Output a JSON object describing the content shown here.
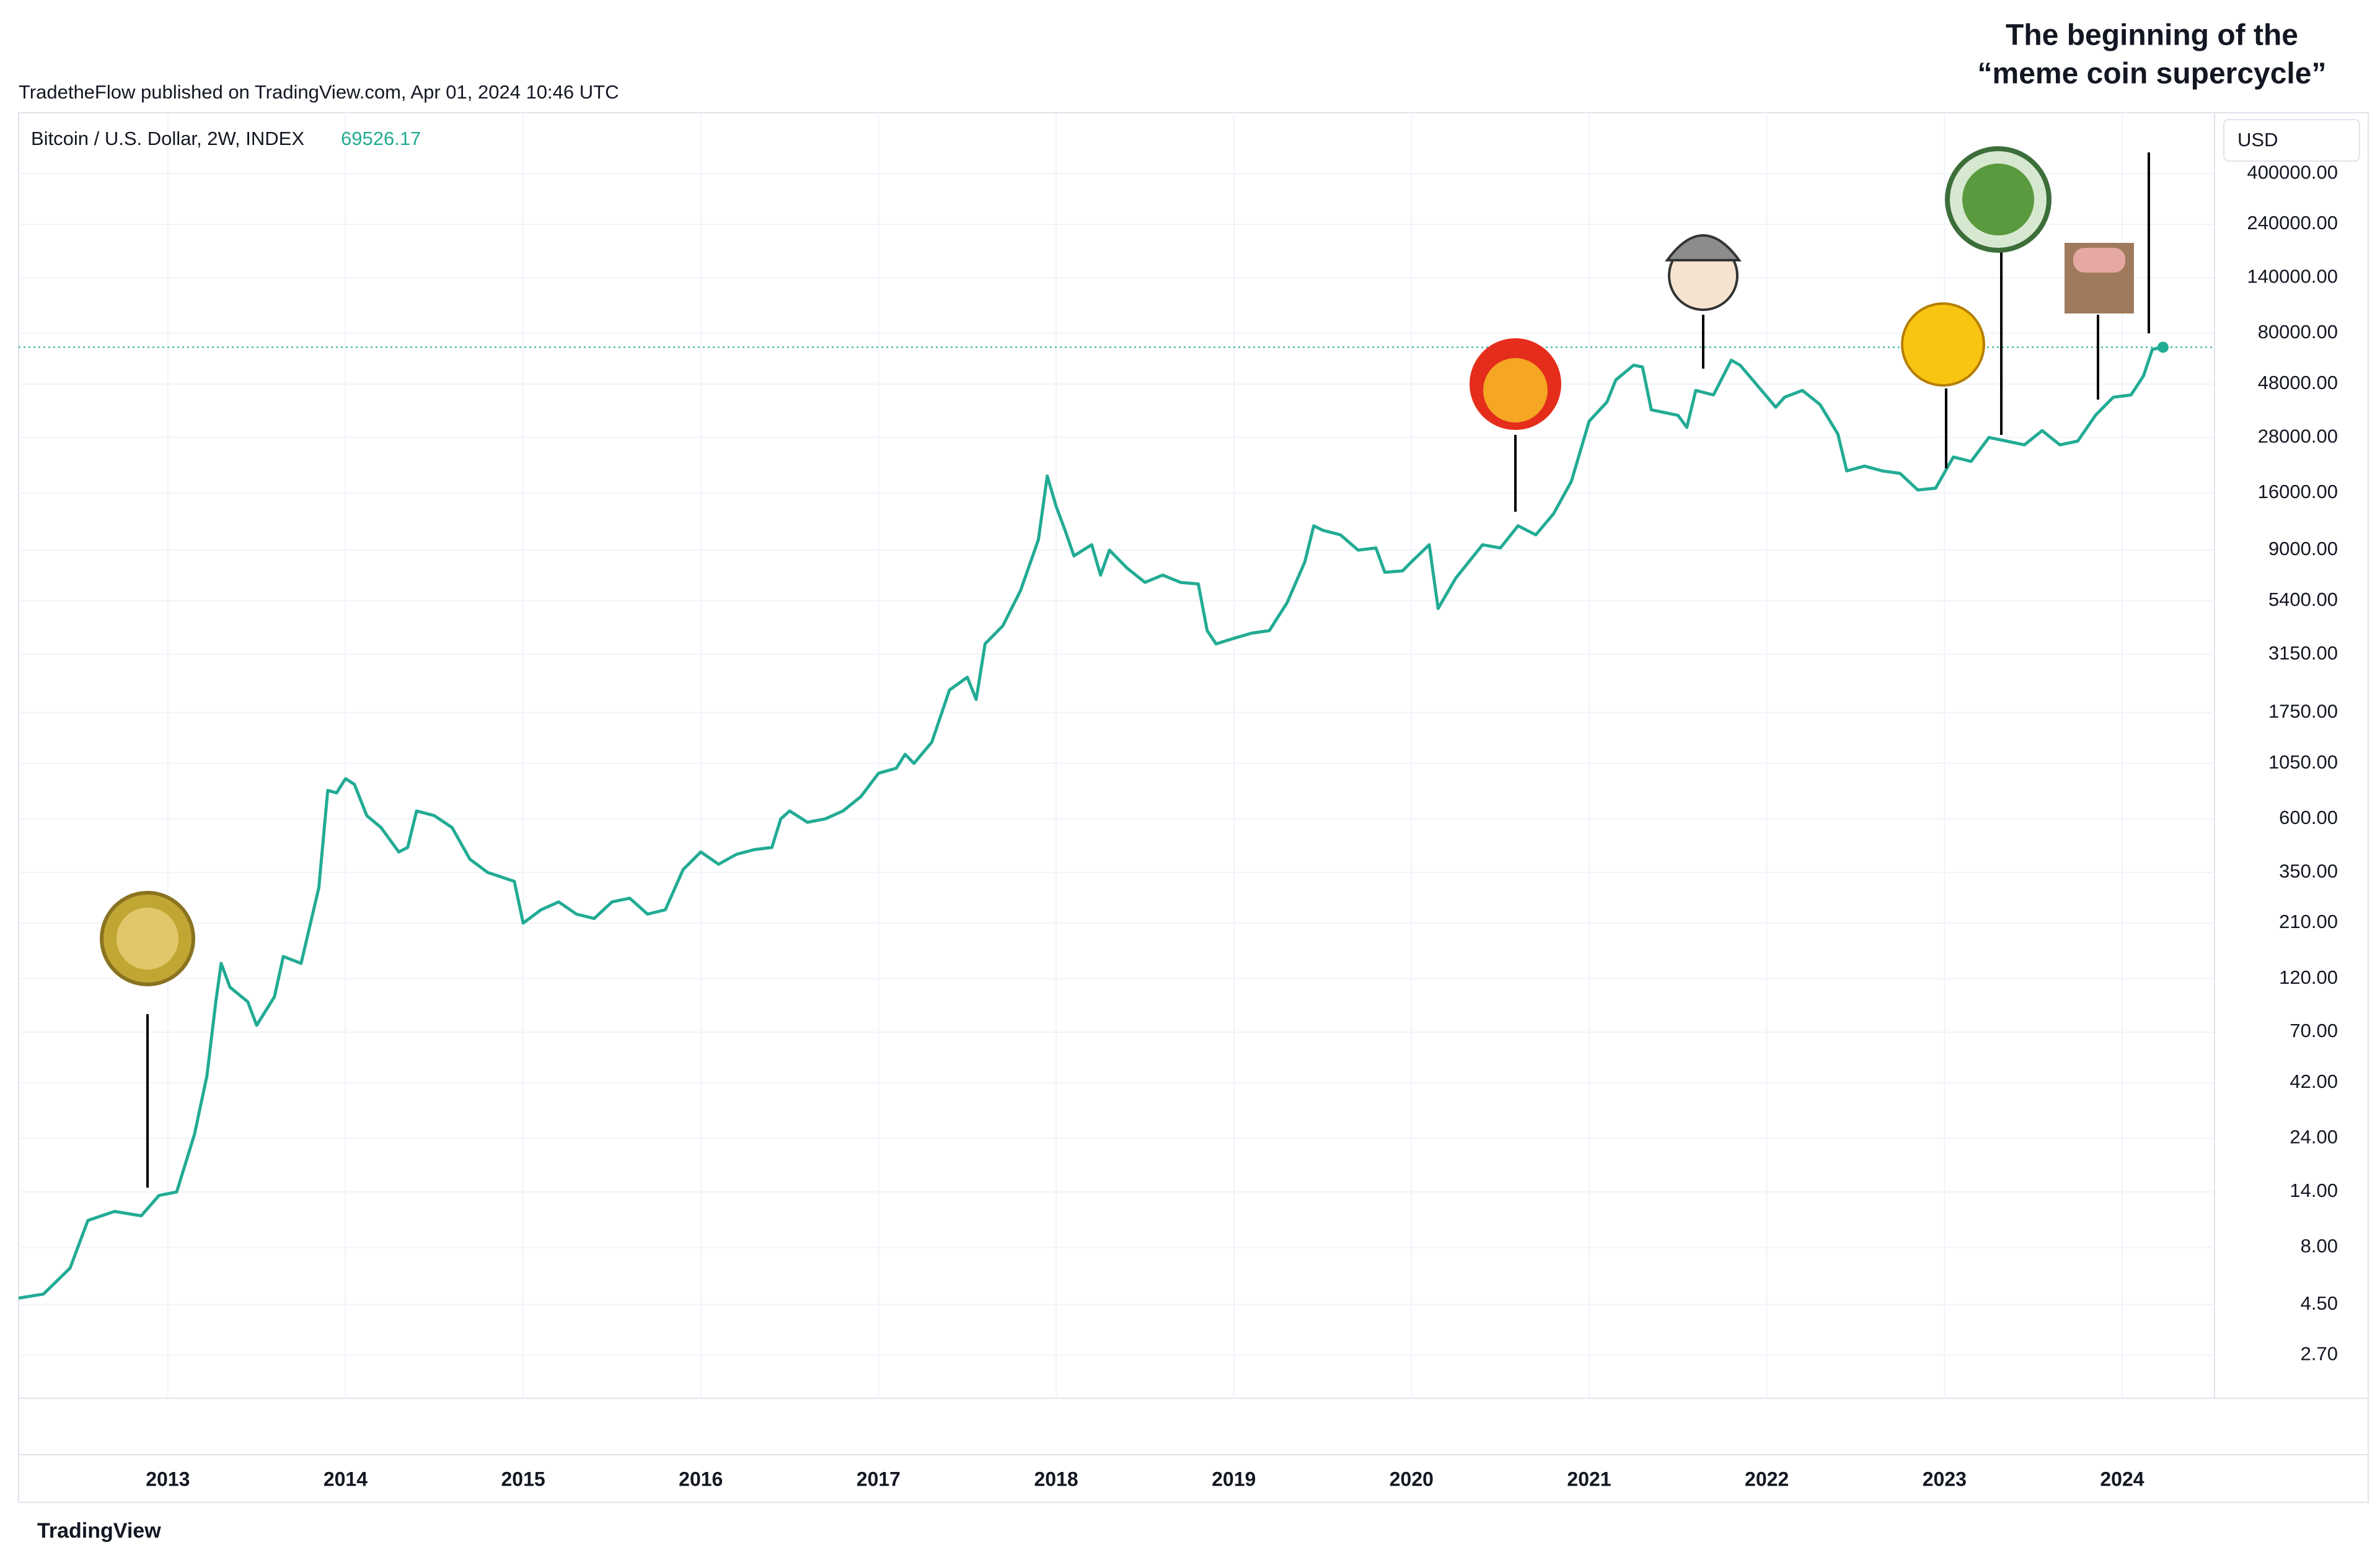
{
  "header": {
    "published": "TradetheFlow published on TradingView.com, Apr 01, 2024 10:46 UTC",
    "currency": "USD",
    "brand": "TradingView"
  },
  "chart_data": {
    "type": "line",
    "title": [
      "The beginning of the",
      "“meme coin supercycle”"
    ],
    "log_scale": true,
    "grid": true,
    "x": [
      2012.16,
      2012.3,
      2012.45,
      2012.55,
      2012.7,
      2012.85,
      2012.95,
      2013.05,
      2013.15,
      2013.22,
      2013.27,
      2013.3,
      2013.35,
      2013.45,
      2013.5,
      2013.6,
      2013.65,
      2013.75,
      2013.85,
      2013.9,
      2013.95,
      2014.0,
      2014.05,
      2014.12,
      2014.2,
      2014.3,
      2014.35,
      2014.4,
      2014.5,
      2014.6,
      2014.7,
      2014.8,
      2014.95,
      2015.0,
      2015.1,
      2015.2,
      2015.3,
      2015.4,
      2015.5,
      2015.6,
      2015.7,
      2015.8,
      2015.9,
      2016.0,
      2016.1,
      2016.2,
      2016.3,
      2016.4,
      2016.45,
      2016.5,
      2016.6,
      2016.7,
      2016.8,
      2016.9,
      2017.0,
      2017.1,
      2017.15,
      2017.2,
      2017.3,
      2017.4,
      2017.5,
      2017.55,
      2017.6,
      2017.7,
      2017.8,
      2017.9,
      2017.95,
      2018.0,
      2018.05,
      2018.1,
      2018.2,
      2018.25,
      2018.3,
      2018.4,
      2018.5,
      2018.6,
      2018.7,
      2018.8,
      2018.85,
      2018.9,
      2019.0,
      2019.1,
      2019.2,
      2019.3,
      2019.4,
      2019.45,
      2019.5,
      2019.6,
      2019.7,
      2019.8,
      2019.85,
      2019.95,
      2020.0,
      2020.1,
      2020.15,
      2020.25,
      2020.4,
      2020.5,
      2020.6,
      2020.7,
      2020.8,
      2020.9,
      2021.0,
      2021.1,
      2021.15,
      2021.25,
      2021.3,
      2021.35,
      2021.5,
      2021.55,
      2021.6,
      2021.7,
      2021.8,
      2021.85,
      2021.95,
      2022.05,
      2022.1,
      2022.2,
      2022.3,
      2022.4,
      2022.45,
      2022.55,
      2022.65,
      2022.75,
      2022.85,
      2022.95,
      2023.05,
      2023.15,
      2023.25,
      2023.35,
      2023.45,
      2023.55,
      2023.65,
      2023.75,
      2023.85,
      2023.95,
      2024.05,
      2024.12,
      2024.17,
      2024.23
    ],
    "series": [
      {
        "name": "Bitcoin / U.S. Dollar, 2W, INDEX",
        "color": "#22ab94",
        "values": [
          4.8,
          5.0,
          6.5,
          10.5,
          11.5,
          11,
          13.5,
          14,
          25,
          45,
          95,
          140,
          110,
          95,
          75,
          100,
          150,
          140,
          300,
          800,
          780,
          900,
          850,
          620,
          550,
          430,
          450,
          650,
          620,
          550,
          400,
          350,
          320,
          210,
          240,
          260,
          230,
          220,
          260,
          270,
          230,
          240,
          360,
          430,
          380,
          420,
          440,
          450,
          600,
          650,
          580,
          600,
          650,
          750,
          950,
          1000,
          1150,
          1050,
          1300,
          2200,
          2500,
          2000,
          3500,
          4200,
          6000,
          10000,
          19000,
          14000,
          11000,
          8500,
          9500,
          7000,
          9000,
          7500,
          6500,
          7000,
          6500,
          6400,
          4000,
          3500,
          3700,
          3900,
          4000,
          5300,
          8000,
          11500,
          11000,
          10500,
          9000,
          9200,
          7200,
          7300,
          8000,
          9500,
          5000,
          6800,
          9500,
          9200,
          11500,
          10500,
          13000,
          18000,
          33000,
          40000,
          50000,
          58000,
          57000,
          37000,
          35000,
          31000,
          45000,
          43000,
          61000,
          58000,
          47000,
          38000,
          42000,
          45000,
          39000,
          29000,
          20000,
          21000,
          20000,
          19500,
          16500,
          16800,
          23000,
          22000,
          28000,
          27000,
          26000,
          30000,
          26000,
          27000,
          35000,
          42000,
          43000,
          52000,
          68000,
          69526.17
        ]
      }
    ],
    "xlim": [
      2012.16,
      2024.52
    ],
    "xticks": [
      2013,
      2014,
      2015,
      2016,
      2017,
      2018,
      2019,
      2020,
      2021,
      2022,
      2023,
      2024
    ],
    "ylim": [
      1.75,
      720000
    ],
    "yticks": [
      {
        "value": 2.7,
        "label": "2.70"
      },
      {
        "value": 4.5,
        "label": "4.50"
      },
      {
        "value": 8,
        "label": "8.00"
      },
      {
        "value": 14,
        "label": "14.00"
      },
      {
        "value": 24,
        "label": "24.00"
      },
      {
        "value": 42,
        "label": "42.00"
      },
      {
        "value": 70,
        "label": "70.00"
      },
      {
        "value": 120,
        "label": "120.00"
      },
      {
        "value": 210,
        "label": "210.00"
      },
      {
        "value": 350,
        "label": "350.00"
      },
      {
        "value": 600,
        "label": "600.00"
      },
      {
        "value": 1050,
        "label": "1050.00"
      },
      {
        "value": 1750,
        "label": "1750.00"
      },
      {
        "value": 3150,
        "label": "3150.00"
      },
      {
        "value": 5400,
        "label": "5400.00"
      },
      {
        "value": 9000,
        "label": "9000.00"
      },
      {
        "value": 16000,
        "label": "16000.00"
      },
      {
        "value": 28000,
        "label": "28000.00"
      },
      {
        "value": 48000,
        "label": "48000.00"
      },
      {
        "value": 80000,
        "label": "80000.00"
      },
      {
        "value": 140000,
        "label": "140000.00"
      },
      {
        "value": 240000,
        "label": "240000.00"
      },
      {
        "value": 400000,
        "label": "400000.00"
      }
    ]
  }
}
